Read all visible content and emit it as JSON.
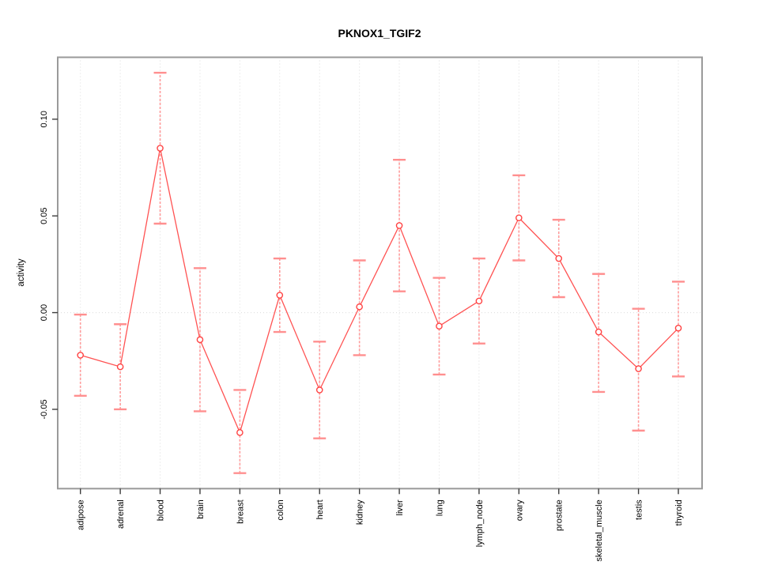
{
  "chart_data": {
    "type": "line",
    "title": "PKNOX1_TGIF2",
    "ylabel": "activity",
    "xlabel": "",
    "legend_position": "none",
    "grid": "vertical dotted line at each category; dotted horizontal line at y=0",
    "categories": [
      "adipose",
      "adrenal",
      "blood",
      "brain",
      "breast",
      "colon",
      "heart",
      "kidney",
      "liver",
      "lung",
      "lymph_node",
      "ovary",
      "prostate",
      "skeletal_muscle",
      "testis",
      "thyroid"
    ],
    "values": [
      -0.022,
      -0.028,
      0.085,
      -0.014,
      -0.062,
      0.009,
      -0.04,
      0.003,
      0.045,
      -0.007,
      0.006,
      0.049,
      0.028,
      -0.01,
      -0.029,
      -0.008
    ],
    "error_low": [
      -0.043,
      -0.05,
      0.046,
      -0.051,
      -0.083,
      -0.01,
      -0.065,
      -0.022,
      0.011,
      -0.032,
      -0.016,
      0.027,
      0.008,
      -0.041,
      -0.061,
      -0.033
    ],
    "error_high": [
      -0.001,
      -0.006,
      0.124,
      0.023,
      -0.04,
      0.028,
      -0.015,
      0.027,
      0.079,
      0.018,
      0.028,
      0.071,
      0.048,
      0.02,
      0.002,
      0.016
    ],
    "ytick_values": [
      -0.05,
      0.0,
      0.05,
      0.1
    ],
    "ytick_labels": [
      "-0.05",
      "0.00",
      "0.05",
      "0.10"
    ],
    "ylim": [
      -0.091,
      0.132
    ],
    "point_style": "open-circle",
    "colors": {
      "line": "#ff5252",
      "point": "#ff4444",
      "error_bar": "#ff9c9c",
      "error_cap": "#ff8f8f",
      "grid": "#dcdcdc",
      "frame": "#9a9a9a",
      "tick": "#3c3c3c",
      "text": "#000000",
      "background": "#ffffff"
    }
  }
}
